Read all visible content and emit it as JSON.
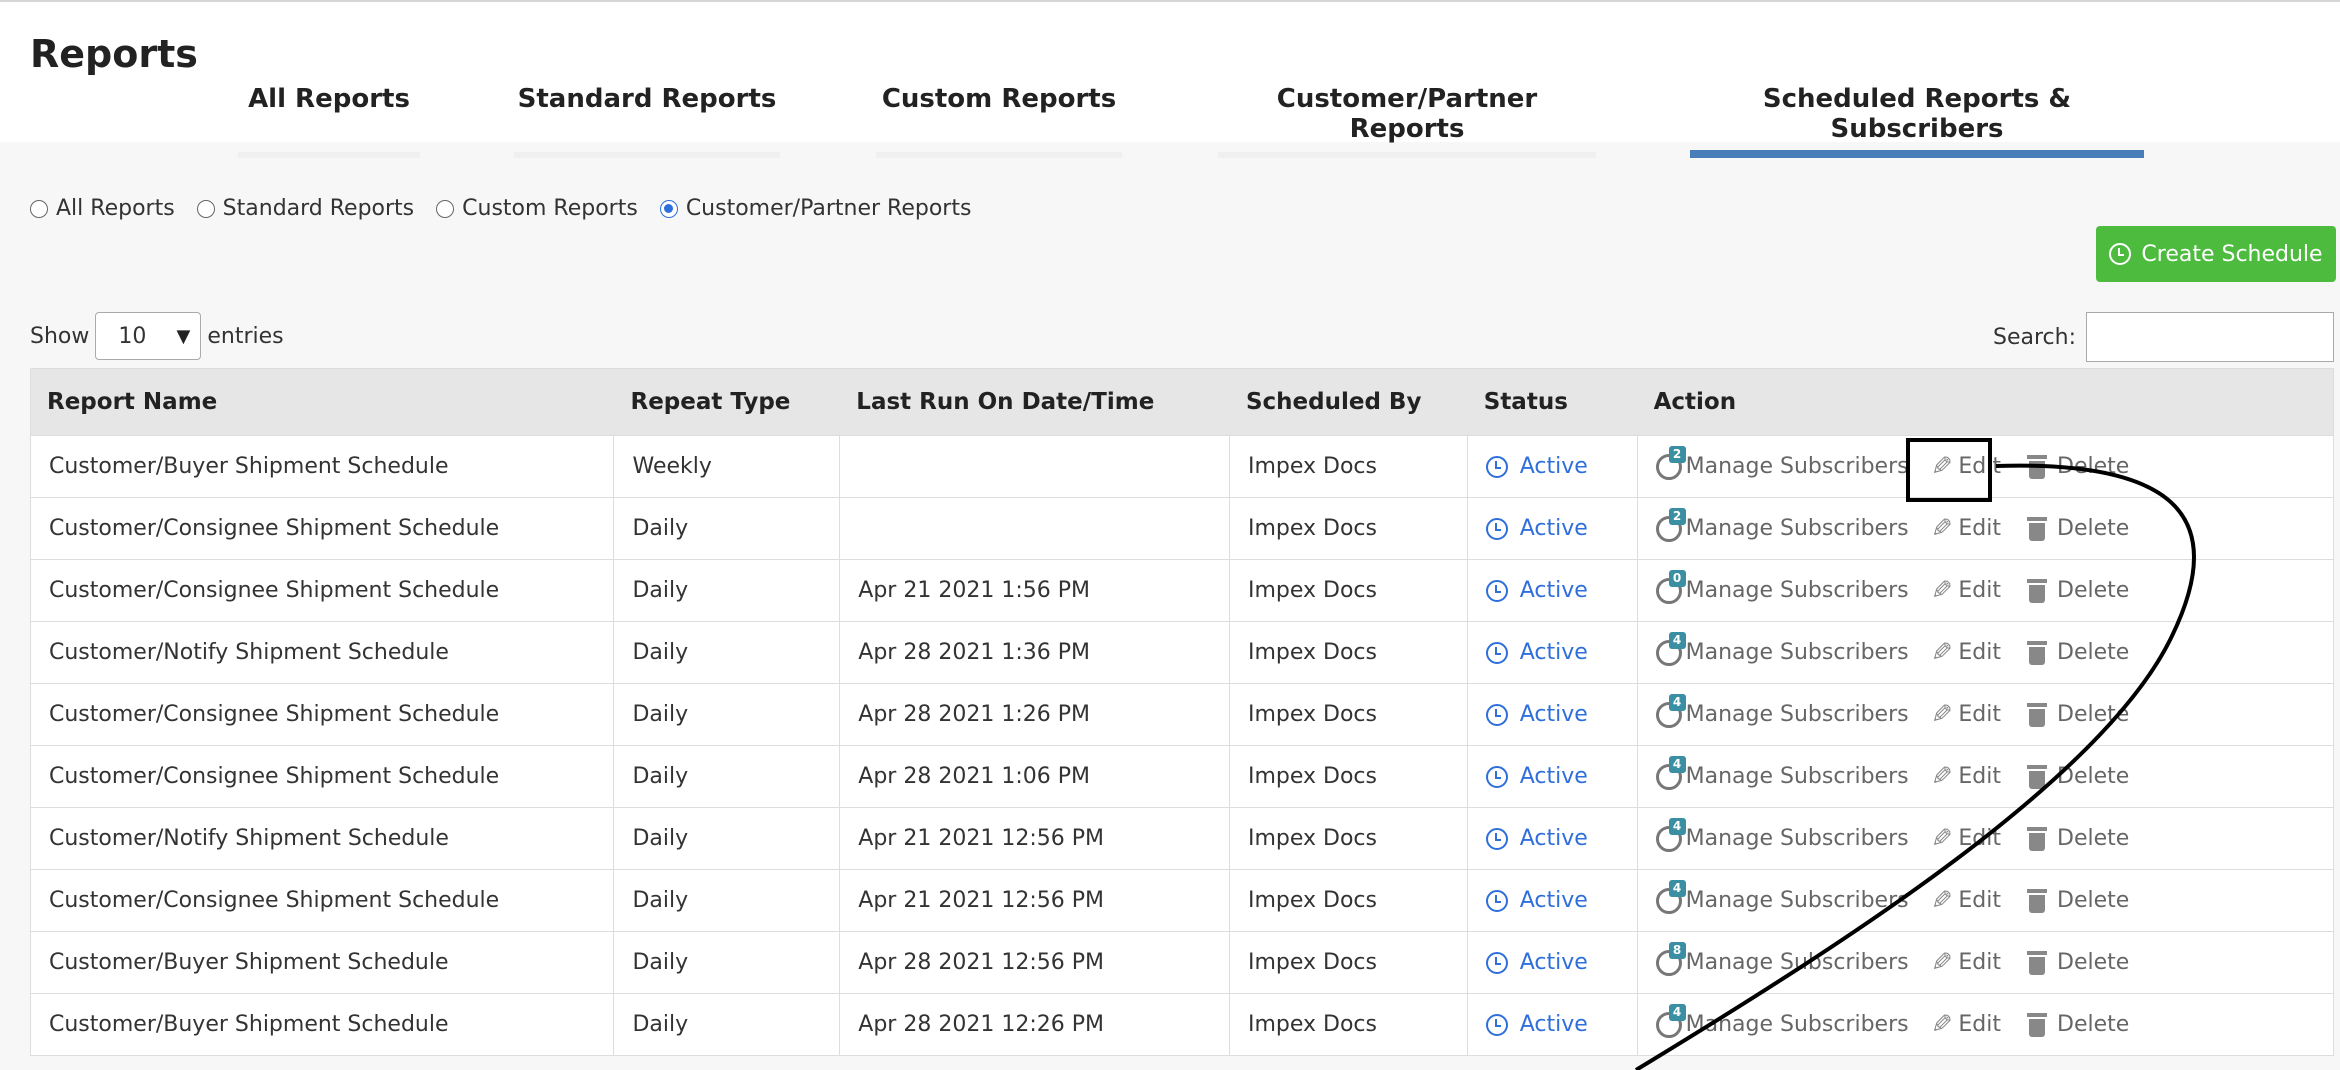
{
  "header": {
    "title": "Reports",
    "tabs": [
      {
        "label": "All Reports",
        "active": false
      },
      {
        "label": "Standard Reports",
        "active": false
      },
      {
        "label": "Custom Reports",
        "active": false
      },
      {
        "label": "Customer/Partner Reports",
        "active": false
      },
      {
        "label": "Scheduled Reports & Subscribers",
        "active": true
      }
    ]
  },
  "filters": {
    "radios": [
      {
        "label": "All Reports",
        "checked": false
      },
      {
        "label": "Standard Reports",
        "checked": false
      },
      {
        "label": "Custom Reports",
        "checked": false
      },
      {
        "label": "Customer/Partner Reports",
        "checked": true
      }
    ]
  },
  "toolbar": {
    "create_label": "Create Schedule",
    "show_label": "Show",
    "entries_value": "10",
    "entries_label": "entries",
    "search_label": "Search:",
    "search_value": ""
  },
  "table": {
    "headers": [
      "Report Name",
      "Repeat Type",
      "Last Run On Date/Time",
      "Scheduled By",
      "Status",
      "Action"
    ],
    "actions": {
      "subscribers": "Manage Subscribers",
      "edit": "Edit",
      "delete": "Delete"
    },
    "rows": [
      {
        "name": "Customer/Buyer Shipment Schedule",
        "repeat": "Weekly",
        "last_run": "",
        "by": "Impex Docs",
        "status": "Active",
        "subscribers": "2"
      },
      {
        "name": "Customer/Consignee Shipment Schedule",
        "repeat": "Daily",
        "last_run": "",
        "by": "Impex Docs",
        "status": "Active",
        "subscribers": "2"
      },
      {
        "name": "Customer/Consignee Shipment Schedule",
        "repeat": "Daily",
        "last_run": "Apr 21 2021 1:56 PM",
        "by": "Impex Docs",
        "status": "Active",
        "subscribers": "0"
      },
      {
        "name": "Customer/Notify Shipment Schedule",
        "repeat": "Daily",
        "last_run": "Apr 28 2021 1:36 PM",
        "by": "Impex Docs",
        "status": "Active",
        "subscribers": "4"
      },
      {
        "name": "Customer/Consignee Shipment Schedule",
        "repeat": "Daily",
        "last_run": "Apr 28 2021 1:26 PM",
        "by": "Impex Docs",
        "status": "Active",
        "subscribers": "4"
      },
      {
        "name": "Customer/Consignee Shipment Schedule",
        "repeat": "Daily",
        "last_run": "Apr 28 2021 1:06 PM",
        "by": "Impex Docs",
        "status": "Active",
        "subscribers": "4"
      },
      {
        "name": "Customer/Notify Shipment Schedule",
        "repeat": "Daily",
        "last_run": "Apr 21 2021 12:56 PM",
        "by": "Impex Docs",
        "status": "Active",
        "subscribers": "4"
      },
      {
        "name": "Customer/Consignee Shipment Schedule",
        "repeat": "Daily",
        "last_run": "Apr 21 2021 12:56 PM",
        "by": "Impex Docs",
        "status": "Active",
        "subscribers": "4"
      },
      {
        "name": "Customer/Buyer Shipment Schedule",
        "repeat": "Daily",
        "last_run": "Apr 28 2021 12:56 PM",
        "by": "Impex Docs",
        "status": "Active",
        "subscribers": "8"
      },
      {
        "name": "Customer/Buyer Shipment Schedule",
        "repeat": "Daily",
        "last_run": "Apr 28 2021 12:26 PM",
        "by": "Impex Docs",
        "status": "Active",
        "subscribers": "4"
      }
    ]
  },
  "colors": {
    "accent": "#4a7eb8",
    "create_button": "#4cbb3e",
    "status": "#2f6fdc",
    "badge": "#3a8fa3"
  }
}
